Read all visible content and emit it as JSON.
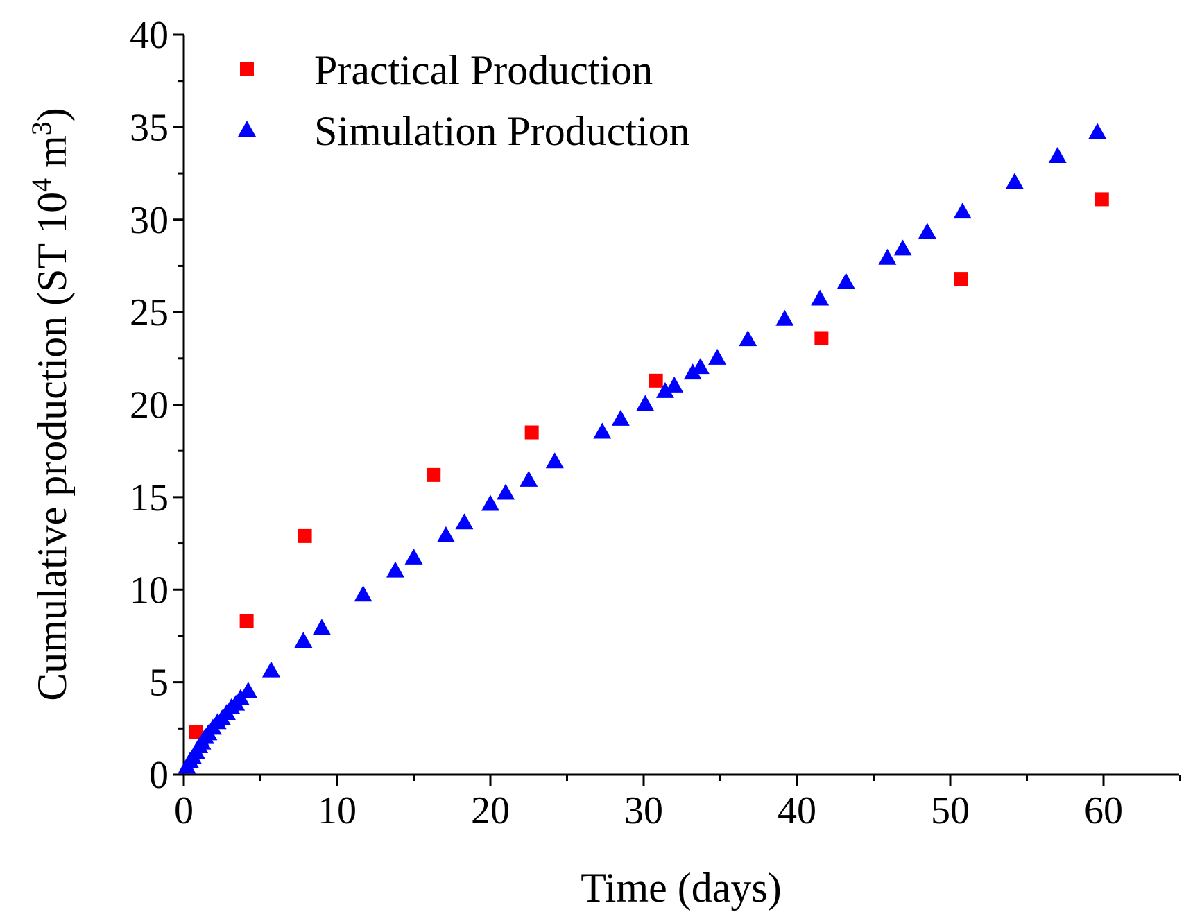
{
  "chart_data": {
    "type": "scatter",
    "title": "",
    "xlabel": "Time (days)",
    "ylabel_main": "Cumulative production (ST 10",
    "ylabel_sup": "4",
    "ylabel_unit": " m",
    "ylabel_sup2": "3",
    "ylabel_close": ")",
    "xlim": [
      0,
      65
    ],
    "ylim": [
      0,
      40
    ],
    "xticks": [
      0,
      10,
      20,
      30,
      40,
      50,
      60
    ],
    "yticks": [
      0,
      5,
      10,
      15,
      20,
      25,
      30,
      35,
      40
    ],
    "xtick_labels": [
      "0",
      "10",
      "20",
      "30",
      "40",
      "50",
      "60"
    ],
    "ytick_labels": [
      "0",
      "5",
      "10",
      "15",
      "20",
      "25",
      "30",
      "35",
      "40"
    ],
    "legend_position": "top-left",
    "grid": false,
    "series": [
      {
        "name": "Practical Production",
        "marker": "square",
        "color": "#ff0000",
        "x": [
          0.8,
          4.1,
          7.9,
          16.3,
          22.7,
          30.8,
          41.6,
          50.7,
          59.9
        ],
        "y": [
          2.3,
          8.3,
          12.9,
          16.2,
          18.5,
          21.3,
          23.6,
          26.8,
          31.1
        ]
      },
      {
        "name": "Simulation Production",
        "marker": "triangle",
        "color": "#0000ff",
        "x": [
          0.2,
          0.4,
          0.6,
          0.8,
          1.0,
          1.2,
          1.4,
          1.6,
          1.9,
          2.2,
          2.5,
          2.8,
          3.1,
          3.4,
          3.7,
          4.2,
          5.7,
          7.8,
          9.0,
          11.7,
          13.8,
          15.0,
          17.1,
          18.3,
          20.0,
          21.0,
          22.5,
          24.2,
          27.3,
          28.5,
          30.1,
          31.4,
          32.0,
          33.2,
          33.7,
          34.8,
          36.8,
          39.2,
          41.5,
          43.2,
          45.9,
          46.9,
          48.5,
          50.8,
          54.2,
          57.0,
          59.6
        ],
        "y": [
          0.4,
          0.7,
          0.9,
          1.2,
          1.5,
          1.7,
          2.0,
          2.2,
          2.5,
          2.8,
          3.0,
          3.3,
          3.6,
          3.8,
          4.1,
          4.5,
          5.6,
          7.2,
          7.9,
          9.7,
          11.0,
          11.7,
          12.9,
          13.6,
          14.6,
          15.2,
          15.9,
          16.9,
          18.5,
          19.2,
          20.0,
          20.7,
          21.0,
          21.7,
          22.0,
          22.5,
          23.5,
          24.6,
          25.7,
          26.6,
          27.9,
          28.4,
          29.3,
          30.4,
          32.0,
          33.4,
          34.7
        ]
      }
    ]
  }
}
